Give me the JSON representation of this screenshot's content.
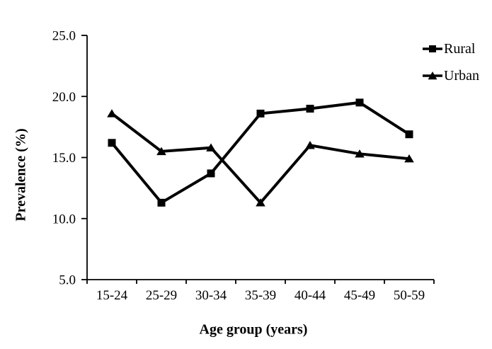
{
  "figure": {
    "background": "#ffffff",
    "text_color": "#000000"
  },
  "chart_data": {
    "type": "line",
    "categories": [
      "15-24",
      "25-29",
      "30-34",
      "35-39",
      "40-44",
      "45-49",
      "50-59"
    ],
    "series": [
      {
        "name": "Rural",
        "marker": "square",
        "color": "#000000",
        "values": [
          16.2,
          11.3,
          13.7,
          18.6,
          19.0,
          19.5,
          16.9
        ]
      },
      {
        "name": "Urban",
        "marker": "triangle",
        "color": "#000000",
        "values": [
          18.6,
          15.5,
          15.8,
          11.3,
          16.0,
          15.3,
          14.9
        ]
      }
    ],
    "xlabel": "Age group (years)",
    "ylabel": "Prevalence (%)",
    "ylim": [
      5.0,
      25.0
    ],
    "ytick_step": 5,
    "ytick_labels": [
      "5.0",
      "10.0",
      "15.0",
      "20.0",
      "25.0"
    ],
    "grid": false,
    "legend_position": "top-right"
  }
}
